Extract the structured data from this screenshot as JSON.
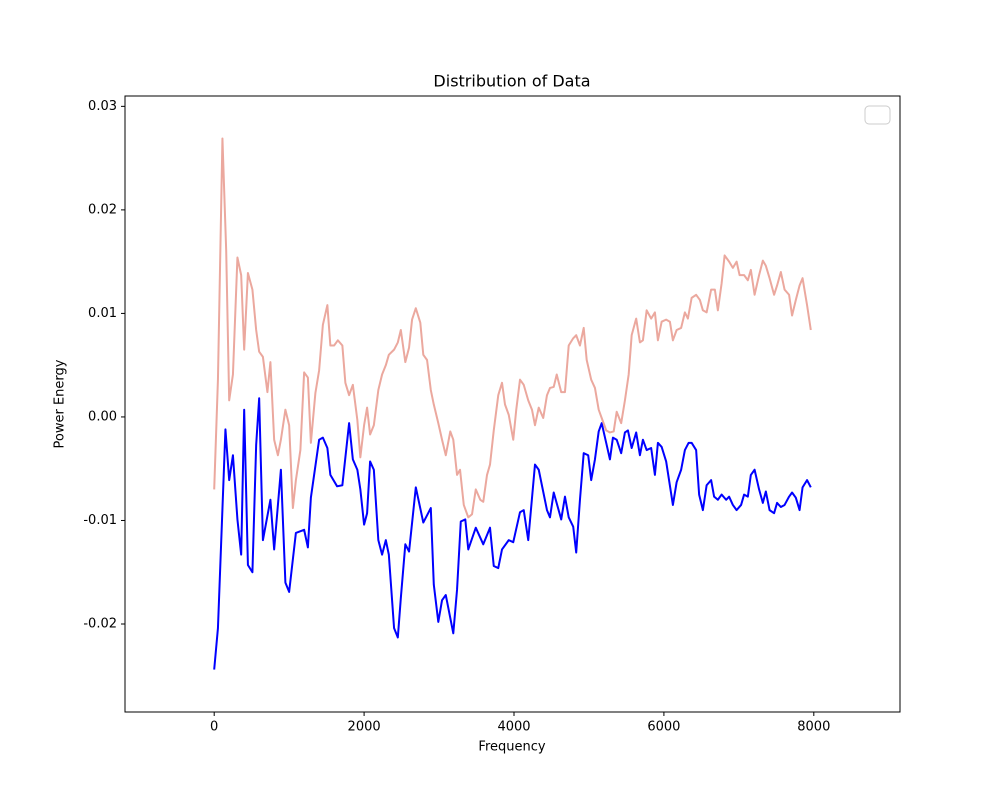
{
  "chart_data": {
    "type": "line",
    "title": "Distribution of Data",
    "xlabel": "Frequency",
    "ylabel": "Power Energy",
    "xlim": [
      -1190,
      9150
    ],
    "ylim": [
      -0.0285,
      0.031
    ],
    "xticks": [
      0,
      2000,
      4000,
      6000,
      8000
    ],
    "yticks": [
      -0.02,
      -0.01,
      {
        "value": 0,
        "label": "0.00"
      },
      0.01,
      0.02,
      0.03
    ],
    "grid": false,
    "legend": "upper right",
    "series": [
      {
        "color": "#0000ff",
        "x": [
          0,
          50,
          150,
          200,
          250,
          310,
          360,
          400,
          450,
          510,
          560,
          600,
          650,
          750,
          800,
          890,
          950,
          1000,
          1090,
          1200,
          1250,
          1290,
          1400,
          1450,
          1510,
          1550,
          1640,
          1710,
          1800,
          1850,
          1910,
          1950,
          2000,
          2040,
          2080,
          2130,
          2190,
          2240,
          2290,
          2330,
          2400,
          2450,
          2490,
          2550,
          2600,
          2690,
          2790,
          2890,
          2930,
          2990,
          3040,
          3090,
          3190,
          3240,
          3290,
          3350,
          3390,
          3490,
          3590,
          3680,
          3730,
          3790,
          3840,
          3930,
          3990,
          4080,
          4130,
          4190,
          4280,
          4330,
          4440,
          4480,
          4530,
          4630,
          4680,
          4730,
          4790,
          4830,
          4880,
          4930,
          4990,
          5030,
          5080,
          5130,
          5170,
          5230,
          5280,
          5320,
          5370,
          5430,
          5480,
          5520,
          5570,
          5630,
          5680,
          5720,
          5770,
          5830,
          5880,
          5920,
          5970,
          6030,
          6120,
          6170,
          6230,
          6280,
          6330,
          6370,
          6430,
          6470,
          6520,
          6570,
          6630,
          6670,
          6720,
          6770,
          6830,
          6870,
          6920,
          6970,
          7030,
          7070,
          7120,
          7160,
          7210,
          7270,
          7320,
          7360,
          7410,
          7470,
          7510,
          7560,
          7610,
          7670,
          7710,
          7760,
          7810,
          7850,
          7910,
          7960
        ],
        "values": [
          -0.0244,
          -0.0204,
          -0.0012,
          -0.0061,
          -0.0037,
          -0.0099,
          -0.0133,
          0.0007,
          -0.0143,
          -0.015,
          -0.0027,
          0.0018,
          -0.0119,
          -0.008,
          -0.0128,
          -0.0051,
          -0.016,
          -0.0169,
          -0.0112,
          -0.0109,
          -0.0126,
          -0.0078,
          -0.0022,
          -0.002,
          -0.003,
          -0.0056,
          -0.0067,
          -0.0066,
          -0.0006,
          -0.0041,
          -0.0051,
          -0.007,
          -0.0104,
          -0.0093,
          -0.0043,
          -0.0051,
          -0.0119,
          -0.0133,
          -0.0119,
          -0.0133,
          -0.0204,
          -0.0213,
          -0.0175,
          -0.0123,
          -0.013,
          -0.0068,
          -0.0102,
          -0.0088,
          -0.0162,
          -0.0198,
          -0.0177,
          -0.0172,
          -0.0209,
          -0.0167,
          -0.0101,
          -0.0099,
          -0.0128,
          -0.0107,
          -0.0123,
          -0.0107,
          -0.0144,
          -0.0146,
          -0.0128,
          -0.0119,
          -0.0121,
          -0.0092,
          -0.009,
          -0.0119,
          -0.0046,
          -0.0051,
          -0.009,
          -0.0097,
          -0.0073,
          -0.0099,
          -0.0077,
          -0.0097,
          -0.0106,
          -0.0131,
          -0.008,
          -0.0035,
          -0.0037,
          -0.0061,
          -0.0041,
          -0.0014,
          -0.0006,
          -0.0025,
          -0.0041,
          -0.002,
          -0.0022,
          -0.0035,
          -0.0015,
          -0.0013,
          -0.003,
          -0.0015,
          -0.0037,
          -0.0022,
          -0.0032,
          -0.003,
          -0.0056,
          -0.0025,
          -0.0029,
          -0.0043,
          -0.0085,
          -0.0063,
          -0.0051,
          -0.0032,
          -0.0025,
          -0.0025,
          -0.0032,
          -0.0075,
          -0.009,
          -0.0066,
          -0.0061,
          -0.0077,
          -0.008,
          -0.0075,
          -0.008,
          -0.0077,
          -0.0085,
          -0.009,
          -0.0085,
          -0.0075,
          -0.0077,
          -0.0056,
          -0.0051,
          -0.007,
          -0.0083,
          -0.0072,
          -0.009,
          -0.0093,
          -0.0083,
          -0.0087,
          -0.0085,
          -0.0077,
          -0.0073,
          -0.0078,
          -0.009,
          -0.0068,
          -0.0061,
          -0.0068
        ]
      },
      {
        "color": "#eba89e",
        "x": [
          0,
          50,
          110,
          160,
          200,
          250,
          310,
          360,
          400,
          450,
          510,
          560,
          600,
          650,
          710,
          750,
          800,
          850,
          890,
          950,
          1000,
          1050,
          1090,
          1150,
          1200,
          1250,
          1290,
          1350,
          1400,
          1450,
          1510,
          1550,
          1600,
          1650,
          1710,
          1750,
          1800,
          1850,
          1910,
          1950,
          2000,
          2040,
          2080,
          2130,
          2190,
          2240,
          2290,
          2330,
          2400,
          2450,
          2490,
          2550,
          2600,
          2640,
          2690,
          2750,
          2790,
          2840,
          2890,
          2930,
          2990,
          3040,
          3090,
          3150,
          3190,
          3240,
          3280,
          3330,
          3390,
          3440,
          3490,
          3550,
          3590,
          3640,
          3680,
          3730,
          3790,
          3840,
          3880,
          3930,
          3990,
          4030,
          4080,
          4130,
          4190,
          4240,
          4280,
          4330,
          4390,
          4440,
          4480,
          4530,
          4570,
          4630,
          4680,
          4730,
          4790,
          4830,
          4880,
          4930,
          4970,
          5030,
          5080,
          5130,
          5170,
          5230,
          5280,
          5330,
          5370,
          5430,
          5480,
          5530,
          5570,
          5630,
          5680,
          5720,
          5770,
          5830,
          5880,
          5920,
          5970,
          6030,
          6080,
          6120,
          6170,
          6230,
          6280,
          6320,
          6370,
          6430,
          6480,
          6520,
          6570,
          6630,
          6680,
          6720,
          6770,
          6810,
          6870,
          6920,
          6970,
          7010,
          7070,
          7120,
          7160,
          7210,
          7270,
          7320,
          7360,
          7410,
          7470,
          7510,
          7560,
          7610,
          7670,
          7710,
          7760,
          7810,
          7850,
          7910,
          7960
        ],
        "values": [
          -0.007,
          0.0036,
          0.0269,
          0.0161,
          0.0016,
          0.0041,
          0.0154,
          0.0137,
          0.0065,
          0.0139,
          0.0123,
          0.0084,
          0.0063,
          0.0058,
          0.0024,
          0.0053,
          -0.0022,
          -0.0037,
          -0.0022,
          0.0007,
          -0.0008,
          -0.0088,
          -0.0061,
          -0.0032,
          0.0043,
          0.0038,
          -0.0025,
          0.0023,
          0.0045,
          0.0089,
          0.0108,
          0.0069,
          0.0069,
          0.0074,
          0.0069,
          0.0033,
          0.0021,
          0.0031,
          -0.0003,
          -0.0039,
          -0.0008,
          0.0009,
          -0.0017,
          -0.0008,
          0.0026,
          0.0041,
          0.005,
          0.006,
          0.0065,
          0.0072,
          0.0084,
          0.0053,
          0.0067,
          0.0094,
          0.0105,
          0.0091,
          0.006,
          0.0055,
          0.0026,
          0.0012,
          -0.0006,
          -0.0022,
          -0.0037,
          -0.0014,
          -0.0022,
          -0.0056,
          -0.0051,
          -0.0085,
          -0.0097,
          -0.0094,
          -0.007,
          -0.008,
          -0.0082,
          -0.0056,
          -0.0046,
          -0.0013,
          0.0021,
          0.0033,
          0.0012,
          0.0002,
          -0.0022,
          0.0007,
          0.0036,
          0.0031,
          0.0016,
          0.0007,
          -0.0008,
          0.0009,
          -0.0001,
          0.0021,
          0.0028,
          0.0029,
          0.0041,
          0.0024,
          0.0024,
          0.0069,
          0.0076,
          0.0079,
          0.0069,
          0.0086,
          0.0055,
          0.0036,
          0.0028,
          0.0007,
          -0.0001,
          -0.0013,
          -0.0015,
          -0.0014,
          0.0005,
          -0.0006,
          0.0016,
          0.0041,
          0.0079,
          0.0095,
          0.0072,
          0.0074,
          0.0103,
          0.0095,
          0.0101,
          0.0074,
          0.0092,
          0.0094,
          0.0092,
          0.0074,
          0.0084,
          0.0086,
          0.0101,
          0.0095,
          0.0115,
          0.0118,
          0.0113,
          0.0103,
          0.0101,
          0.0123,
          0.0123,
          0.0103,
          0.0129,
          0.0156,
          0.015,
          0.0144,
          0.015,
          0.0137,
          0.0137,
          0.0132,
          0.0142,
          0.0118,
          0.0137,
          0.0151,
          0.0146,
          0.0134,
          0.0118,
          0.0127,
          0.014,
          0.0123,
          0.0118,
          0.0098,
          0.0113,
          0.0127,
          0.0134,
          0.0108,
          0.0084
        ]
      }
    ]
  }
}
